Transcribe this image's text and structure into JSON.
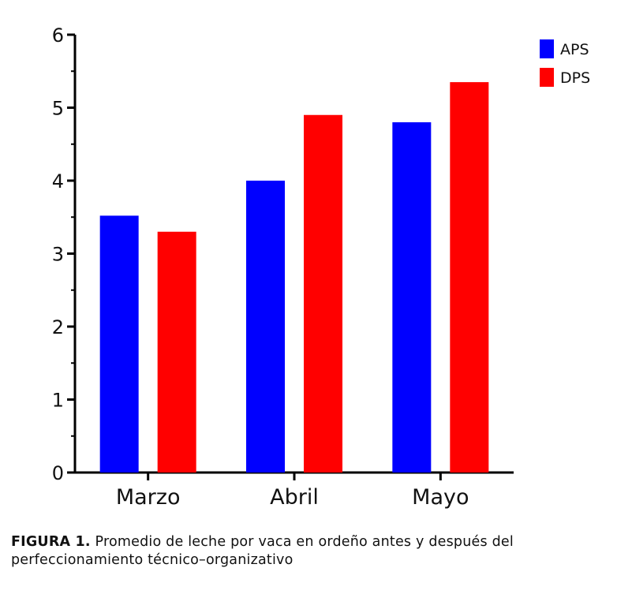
{
  "chart_data": {
    "type": "bar",
    "categories": [
      "Marzo",
      "Abril",
      "Mayo"
    ],
    "series": [
      {
        "name": "APS",
        "color": "#0000ff",
        "values": [
          3.52,
          4.0,
          4.8
        ]
      },
      {
        "name": "DPS",
        "color": "#ff0000",
        "values": [
          3.3,
          4.9,
          5.35
        ]
      }
    ],
    "ylim": [
      0,
      6
    ],
    "yticks": [
      "0",
      "1",
      "2",
      "3",
      "4",
      "5",
      "6"
    ],
    "legend_position": "top-right",
    "grid": false
  },
  "caption": {
    "label": "FIGURA 1.",
    "text": "Promedio de leche por vaca en ordeño antes y después del perfeccionamiento técnico–organizativo"
  }
}
